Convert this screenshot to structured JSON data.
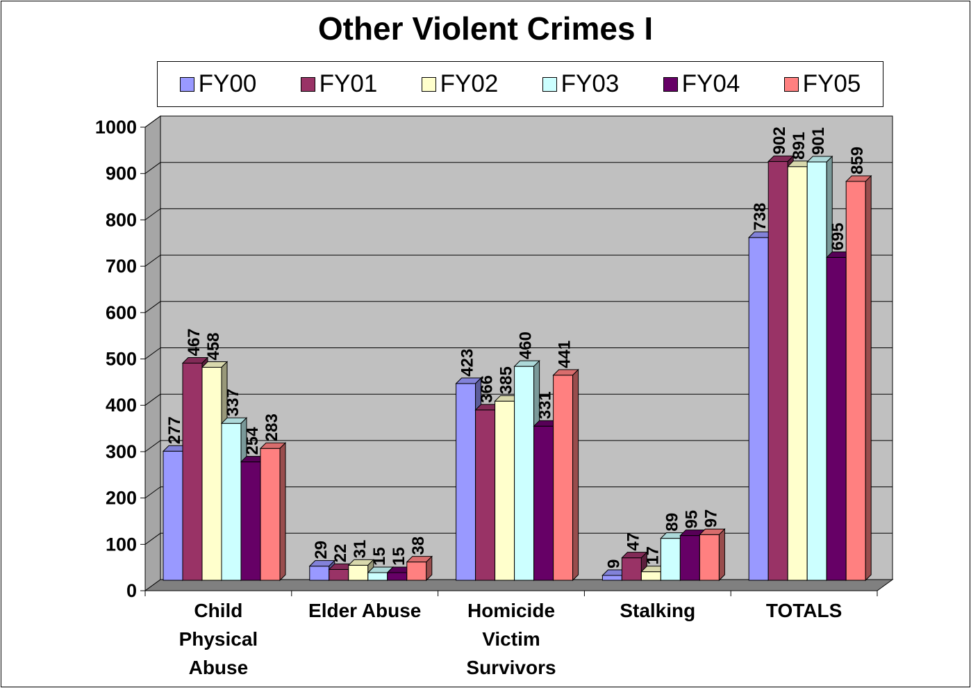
{
  "chart_data": {
    "type": "bar",
    "title": "Other Violent Crimes I",
    "categories": [
      "Child Physical Abuse",
      "Elder Abuse",
      "Homicide Victim Survivors",
      "Stalking",
      "TOTALS"
    ],
    "category_lines": [
      [
        "Child",
        "Physical",
        "Abuse"
      ],
      [
        "Elder Abuse"
      ],
      [
        "Homicide",
        "Victim",
        "Survivors"
      ],
      [
        "Stalking"
      ],
      [
        "TOTALS"
      ]
    ],
    "series": [
      {
        "name": "FY00",
        "color": "#9999ff",
        "values": [
          277,
          29,
          423,
          9,
          738
        ]
      },
      {
        "name": "FY01",
        "color": "#993366",
        "values": [
          467,
          22,
          366,
          47,
          902
        ]
      },
      {
        "name": "FY02",
        "color": "#ffffcc",
        "values": [
          458,
          31,
          385,
          17,
          891
        ]
      },
      {
        "name": "FY03",
        "color": "#ccffff",
        "values": [
          337,
          15,
          460,
          89,
          901
        ]
      },
      {
        "name": "FY04",
        "color": "#660066",
        "values": [
          254,
          15,
          331,
          95,
          695
        ]
      },
      {
        "name": "FY05",
        "color": "#ff8080",
        "values": [
          283,
          38,
          441,
          97,
          859
        ]
      }
    ],
    "ylim": [
      0,
      1000
    ],
    "yticks": [
      0,
      100,
      200,
      300,
      400,
      500,
      600,
      700,
      800,
      900,
      1000
    ],
    "grid": true,
    "legend_position": "top",
    "plot_wall_color": "#c0c0c0",
    "data_labels": true
  }
}
